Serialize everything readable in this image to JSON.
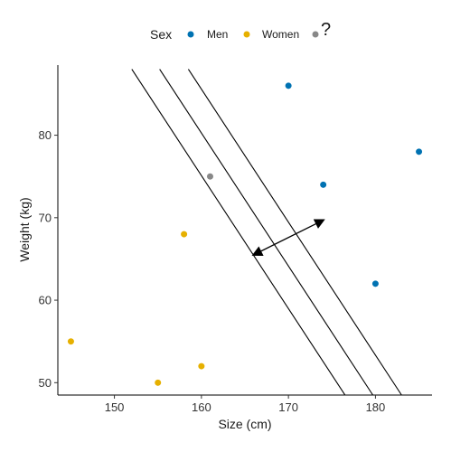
{
  "chart_data": {
    "type": "scatter",
    "xlabel": "Size (cm)",
    "ylabel": "Weight (kg)",
    "xlim": [
      143.5,
      186.5
    ],
    "ylim": [
      48.5,
      88.5
    ],
    "xticks": [
      150,
      160,
      170,
      180
    ],
    "yticks": [
      50,
      60,
      70,
      80
    ],
    "grid": false,
    "legend": {
      "title": "Sex",
      "placement": "top",
      "entries": [
        {
          "label": "Men",
          "color": "#0072b2"
        },
        {
          "label": "Women",
          "color": "#e6b000"
        },
        {
          "label": "?",
          "color": "#888888"
        }
      ]
    },
    "series": [
      {
        "name": "Men",
        "color": "#0072b2",
        "points": [
          [
            170,
            86
          ],
          [
            185,
            78
          ],
          [
            174,
            74
          ],
          [
            180,
            62
          ]
        ]
      },
      {
        "name": "Women",
        "color": "#e6b000",
        "points": [
          [
            145,
            55
          ],
          [
            158,
            68
          ],
          [
            160,
            52
          ],
          [
            155,
            50
          ]
        ]
      },
      {
        "name": "?",
        "color": "#888888",
        "points": [
          [
            161,
            75
          ]
        ]
      }
    ],
    "separator_lines": [
      {
        "from": [
          152,
          88
        ],
        "to": [
          176.5,
          48.5
        ]
      },
      {
        "from": [
          155.2,
          88
        ],
        "to": [
          179.7,
          48.5
        ]
      },
      {
        "from": [
          158.5,
          88
        ],
        "to": [
          183,
          48.5
        ]
      }
    ],
    "margin_arrow": {
      "from": [
        166,
        65.5
      ],
      "to": [
        174,
        69.7
      ]
    }
  }
}
